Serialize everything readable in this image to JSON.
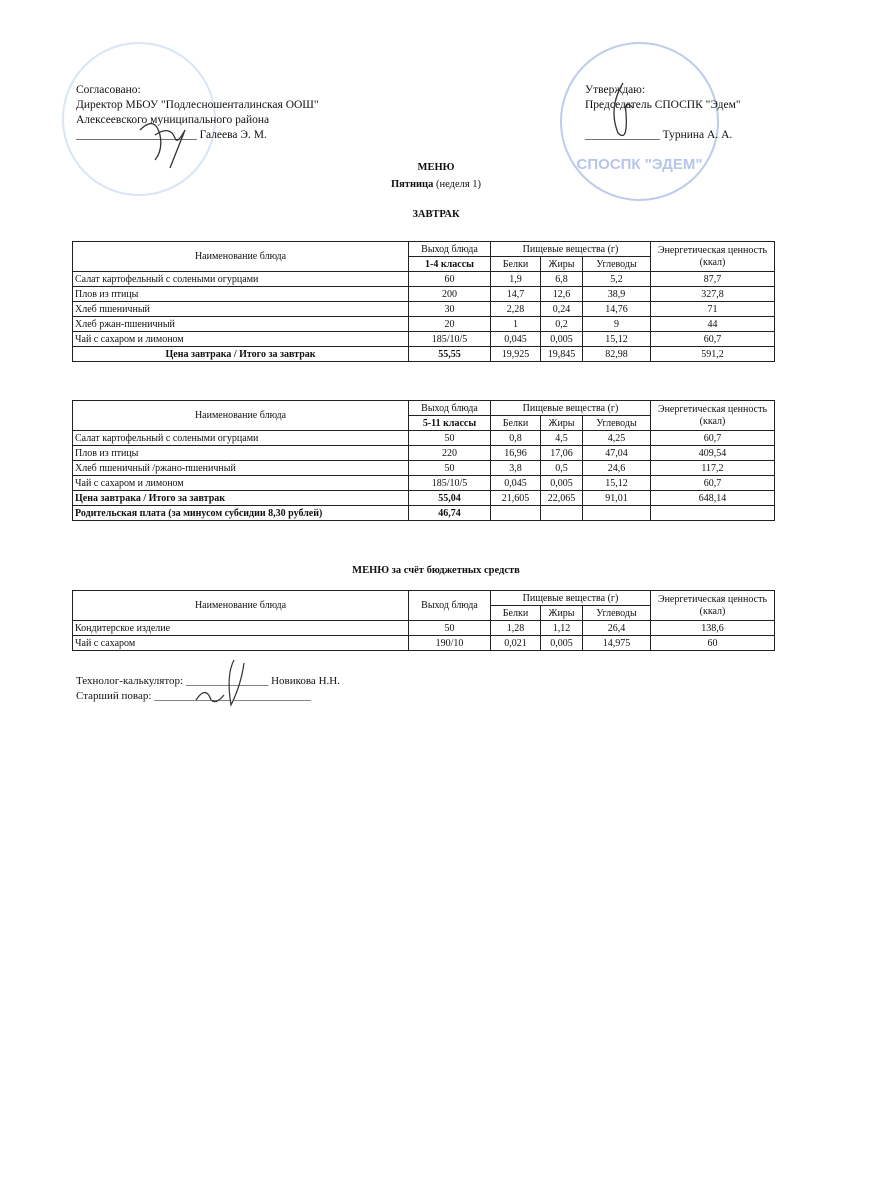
{
  "header": {
    "left": {
      "line1": "Согласовано:",
      "line2": "Директор МБОУ \"Подлесношенталинская   ООШ\"",
      "line3": "Алексеевского муниципального района",
      "line4": "_____________________ Галеева Э. М."
    },
    "right": {
      "line1": "Утверждаю:",
      "line2": "Председатель СПОСПК  \"Эдем\"",
      "line3": "_____________ Турнина А. А."
    },
    "stamp_right_text": "СПОСПК \"ЭДЕМ\""
  },
  "title": "МЕНЮ",
  "subtitle_bold": "Пятница",
  "subtitle_rest": " (неделя 1)",
  "section": "ЗАВТРАК",
  "columns": {
    "name": "Наименование блюда",
    "yield": "Выход блюда",
    "nutrients": "Пищевые вещества (г)",
    "protein": "Белки",
    "fat": "Жиры",
    "carbs": "Углеводы",
    "energy": "Энергетическая ценность (ккал)"
  },
  "table1": {
    "group": "1-4 классы",
    "rows": [
      [
        "Салат картофельный с солеными огурцами",
        "60",
        "1,9",
        "6,8",
        "5,2",
        "87,7"
      ],
      [
        "Плов из птицы",
        "200",
        "14,7",
        "12,6",
        "38,9",
        "327,8"
      ],
      [
        "Хлеб пшеничный",
        "30",
        "2,28",
        "0,24",
        "14,76",
        "71"
      ],
      [
        "Хлеб ржан-пшеничный",
        "20",
        "1",
        "0,2",
        "9",
        "44"
      ],
      [
        "Чай с сахаром и лимоном",
        "185/10/5",
        "0,045",
        "0,005",
        "15,12",
        "60,7"
      ]
    ],
    "total": [
      "Цена завтрака / Итого за завтрак",
      "55,55",
      "19,925",
      "19,845",
      "82,98",
      "591,2"
    ]
  },
  "table2": {
    "group": "5-11 классы",
    "rows": [
      [
        "Салат картофельный с солеными огурцами",
        "50",
        "0,8",
        "4,5",
        "4,25",
        "60,7"
      ],
      [
        "Плов из птицы",
        "220",
        "16,96",
        "17,06",
        "47,04",
        "409,54"
      ],
      [
        "Хлеб пшеничный /ржано-пшеничный",
        "50",
        "3,8",
        "0,5",
        "24,6",
        "117,2"
      ],
      [
        "Чай с сахаром и лимоном",
        "185/10/5",
        "0,045",
        "0,005",
        "15,12",
        "60,7"
      ]
    ],
    "total": [
      "Цена завтрака / Итого за завтрак",
      "55,04",
      "21,605",
      "22,065",
      "91,01",
      "648,14"
    ],
    "parent_fee": [
      "Родительская плата (за минусом субсидии 8,30 рублей)",
      "46,74"
    ]
  },
  "budget_title": "МЕНЮ за счёт бюджетных средств",
  "table3": {
    "rows": [
      [
        "Кондитерское изделие",
        "50",
        "1,28",
        "1,12",
        "26,4",
        "138,6"
      ],
      [
        "Чай с сахаром",
        "190/10",
        "0,021",
        "0,005",
        "14,975",
        "60"
      ]
    ]
  },
  "footer": {
    "line1": "Технолог-калькулятор: _______________ Новикова Н.Н.",
    "line2": "Старший повар: ______________ ______________"
  },
  "colors": {
    "stamp": "#6e8cd2",
    "ink": "#111111"
  }
}
